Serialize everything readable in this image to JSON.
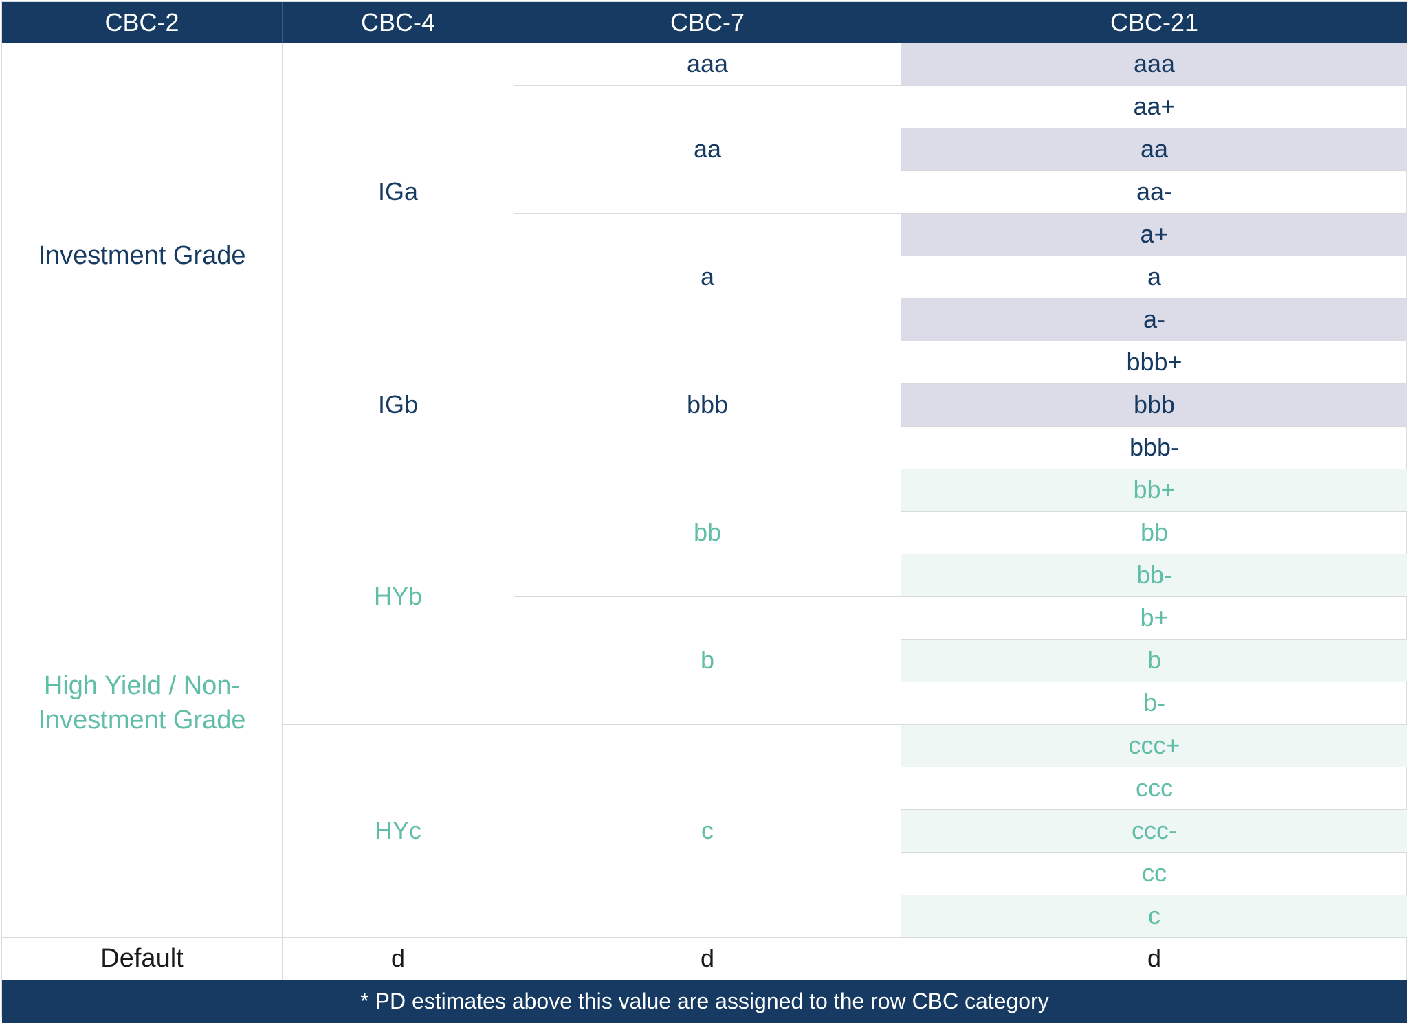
{
  "headers": [
    "CBC-2",
    "CBC-4",
    "CBC-7",
    "CBC-21"
  ],
  "cbc2": {
    "investment_grade": "Investment Grade",
    "high_yield": "High Yield / Non-Investment Grade",
    "default": "Default"
  },
  "cbc4": {
    "iga": "IGa",
    "igb": "IGb",
    "hyb": "HYb",
    "hyc": "HYc",
    "default": "d"
  },
  "cbc7": {
    "aaa": "aaa",
    "aa": "aa",
    "a": "a",
    "bbb": "bbb",
    "bb": "bb",
    "b": "b",
    "c": "c",
    "default": "d"
  },
  "cbc21": [
    "aaa",
    "aa+",
    "aa",
    "aa-",
    "a+",
    "a",
    "a-",
    "bbb+",
    "bbb",
    "bbb-",
    "bb+",
    "bb",
    "bb-",
    "b+",
    "b",
    "b-",
    "ccc+",
    "ccc",
    "ccc-",
    "cc",
    "c"
  ],
  "cbc21_default": "d",
  "footer": "* PD estimates above this value are assigned to the row CBC category",
  "colors": {
    "header_bg": "#163a61",
    "investment_grade_text": "#163a61",
    "high_yield_text": "#5fbea5",
    "ig_shade": "#dcdce8",
    "hy_shade": "#eff7f5"
  }
}
